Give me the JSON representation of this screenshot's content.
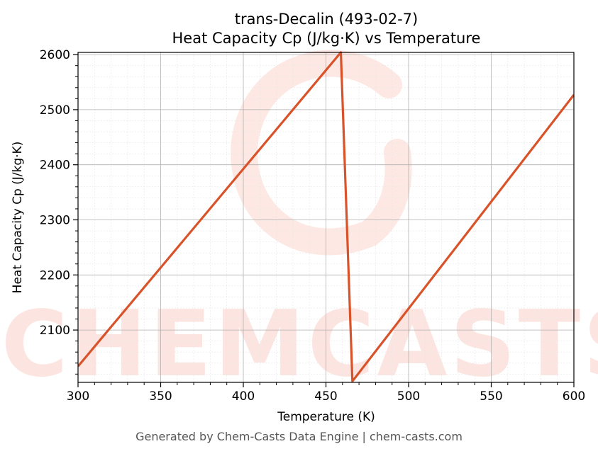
{
  "chart_data": {
    "type": "line",
    "title": "trans-Decalin (493-02-7)",
    "subtitle": "Heat Capacity Cp (J/kg·K) vs Temperature",
    "xlabel": "Temperature (K)",
    "ylabel": "Heat Capacity Cp (J/kg·K)",
    "xlim": [
      300,
      600
    ],
    "ylim": [
      2005,
      2604
    ],
    "xticks": [
      300,
      350,
      400,
      450,
      500,
      550,
      600
    ],
    "yticks": [
      2100,
      2200,
      2300,
      2400,
      2500,
      2600
    ],
    "grid": true,
    "line_color": "#d9532a",
    "series": [
      {
        "x": [
          300,
          459,
          466,
          600
        ],
        "y": [
          2034,
          2604,
          2007,
          2527
        ]
      }
    ]
  },
  "watermark": {
    "text": "CHEMCASTS",
    "color": "#fbd5cc"
  },
  "footer": "Generated by Chem-Casts Data Engine | chem-casts.com"
}
